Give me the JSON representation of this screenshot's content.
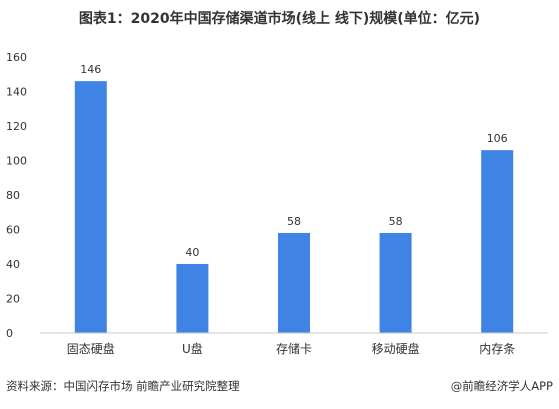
{
  "chart_data": {
    "type": "bar",
    "title": "图表1：2020年中国存储渠道市场(线上 线下)规模(单位：亿元)",
    "categories": [
      "固态硬盘",
      "U盘",
      "存储卡",
      "移动硬盘",
      "内存条"
    ],
    "values": [
      146,
      40,
      58,
      58,
      106
    ],
    "data_labels": [
      "146",
      "40",
      "58",
      "58",
      "106"
    ],
    "ylim": [
      0,
      160
    ],
    "yticks": [
      0,
      20,
      40,
      60,
      80,
      100,
      120,
      140,
      160
    ],
    "ytick_labels": [
      "0",
      "20",
      "40",
      "60",
      "80",
      "100",
      "120",
      "140",
      "160"
    ],
    "grid": false,
    "bar_color": "#3f84e5"
  },
  "footer": {
    "source": "资料来源：中国闪存市场 前瞻产业研究院整理",
    "brand": "@前瞻经济学人APP"
  }
}
